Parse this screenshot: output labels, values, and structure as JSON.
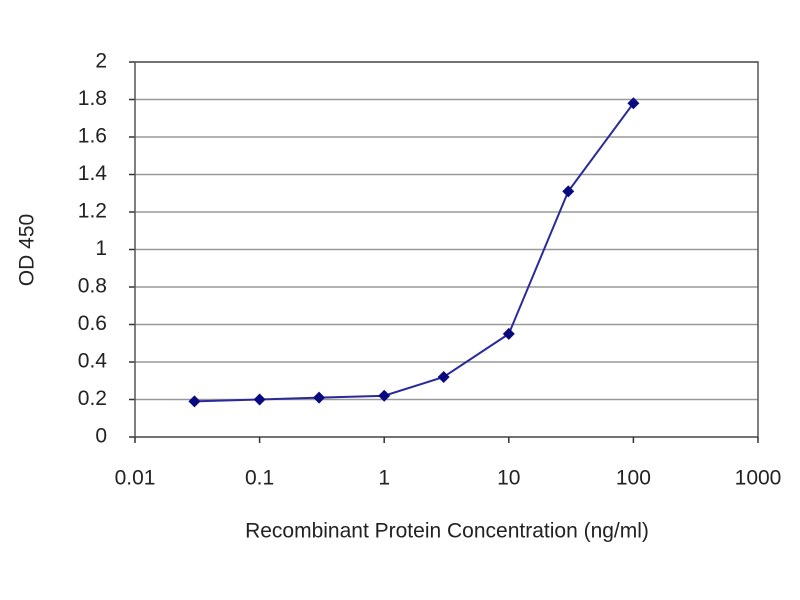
{
  "chart_data": {
    "type": "line",
    "x_label": "Recombinant Protein Concentration (ng/ml)",
    "y_label": "OD 450",
    "x": [
      0.03,
      0.1,
      0.3,
      1,
      3,
      10,
      30,
      100
    ],
    "values": [
      0.19,
      0.2,
      0.21,
      0.22,
      0.32,
      0.55,
      1.31,
      1.78
    ],
    "color": "#2a2a9a",
    "marker_color": "#0a0a80",
    "x_log": true,
    "xlim": [
      0.01,
      1000
    ],
    "xticks": [
      0.01,
      0.1,
      1,
      10,
      100,
      1000
    ],
    "ylim": [
      0,
      2
    ],
    "yticks": [
      0,
      0.2,
      0.4,
      0.6,
      0.8,
      1,
      1.2,
      1.4,
      1.6,
      1.8,
      2
    ],
    "grid": true
  }
}
